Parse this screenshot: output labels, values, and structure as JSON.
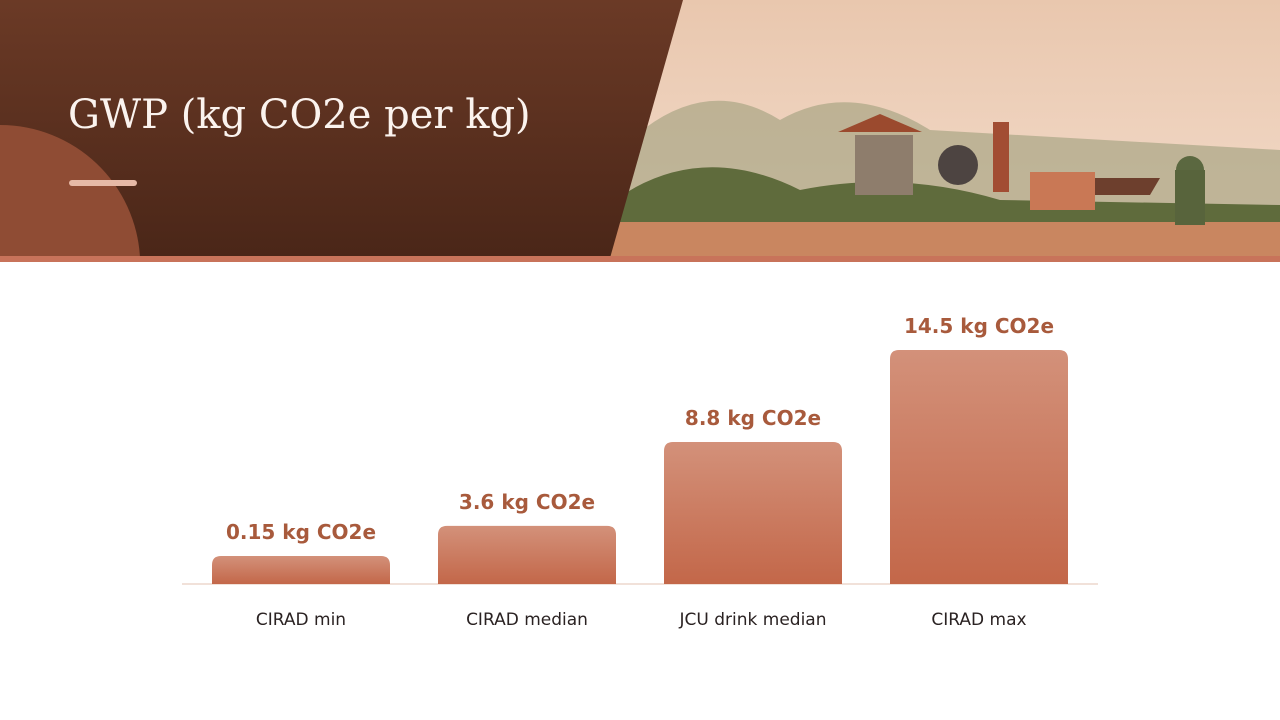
{
  "chart_data": {
    "type": "bar",
    "title": "GWP (kg CO2e per kg)",
    "categories": [
      "CIRAD min",
      "CIRAD median",
      "JCU drink median",
      "CIRAD max"
    ],
    "values": [
      0.15,
      3.6,
      8.8,
      14.5
    ],
    "value_labels": [
      "0.15 kg CO2e",
      "3.6 kg CO2e",
      "8.8 kg CO2e",
      "14.5 kg CO2e"
    ],
    "color": "#c8735a"
  }
}
